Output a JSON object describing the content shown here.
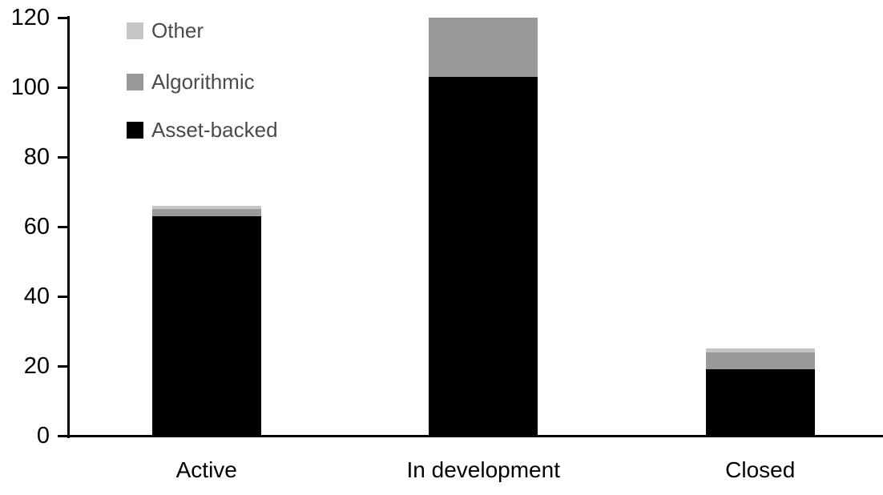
{
  "chart_data": {
    "type": "bar",
    "stacked": true,
    "title": "",
    "categories": [
      "Active",
      "In development",
      "Closed"
    ],
    "series": [
      {
        "name": "Asset-backed",
        "color": "#000000",
        "values": [
          63,
          103,
          19
        ]
      },
      {
        "name": "Algorithmic",
        "color": "#999999",
        "values": [
          2,
          17,
          5
        ]
      },
      {
        "name": "Other",
        "color": "#c6c6c6",
        "values": [
          1,
          0,
          1
        ]
      }
    ],
    "totals": [
      66,
      120,
      25
    ],
    "y_axis": {
      "min": 0,
      "max": 120,
      "tick_interval": 20,
      "ticks": [
        0,
        20,
        40,
        60,
        80,
        100,
        120
      ]
    },
    "x_axis_labels": [
      "Active",
      "In development",
      "Closed"
    ],
    "legend": {
      "position": "top-left",
      "order": [
        "Other",
        "Algorithmic",
        "Asset-backed"
      ]
    },
    "grid": false,
    "background_color": "#ffffff",
    "axis_color": "#000000",
    "legend_text_color": "#4a4a4a"
  }
}
